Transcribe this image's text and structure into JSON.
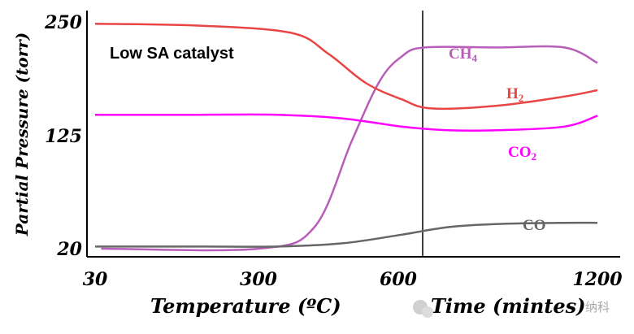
{
  "chart_data": {
    "type": "line",
    "title": "",
    "annotation": "Low SA catalyst",
    "ylabel": "Partial Pressure (torr)",
    "xlabel_left": "Temperature (ºC)",
    "xlabel_right": "Time (mintes)",
    "x_ticks": [
      "30",
      "300",
      "600",
      "1200"
    ],
    "y_ticks": [
      "250",
      "125",
      "20"
    ],
    "ylim": [
      20,
      250
    ],
    "divider_at_tick": "600",
    "grid": false,
    "series": [
      {
        "name": "CH4",
        "color": "#b85db8",
        "points": [
          [
            40,
            20
          ],
          [
            300,
            20
          ],
          [
            420,
            40
          ],
          [
            500,
            120
          ],
          [
            560,
            185
          ],
          [
            610,
            212
          ],
          [
            680,
            222
          ],
          [
            900,
            222
          ],
          [
            1100,
            222
          ],
          [
            1200,
            205
          ]
        ]
      },
      {
        "name": "H2",
        "color": "#e84545",
        "points": [
          [
            30,
            248
          ],
          [
            200,
            246
          ],
          [
            370,
            238
          ],
          [
            450,
            215
          ],
          [
            530,
            183
          ],
          [
            610,
            165
          ],
          [
            700,
            155
          ],
          [
            900,
            158
          ],
          [
            1100,
            168
          ],
          [
            1200,
            175
          ]
        ]
      },
      {
        "name": "CO2",
        "color": "#ff00ff",
        "points": [
          [
            30,
            148
          ],
          [
            200,
            148
          ],
          [
            340,
            148
          ],
          [
            480,
            144
          ],
          [
            610,
            135
          ],
          [
            750,
            131
          ],
          [
            900,
            131
          ],
          [
            1100,
            135
          ],
          [
            1200,
            147
          ]
        ]
      },
      {
        "name": "CO",
        "color": "#666666",
        "points": [
          [
            30,
            22
          ],
          [
            200,
            22
          ],
          [
            340,
            22
          ],
          [
            480,
            25
          ],
          [
            610,
            33
          ],
          [
            750,
            40
          ],
          [
            900,
            43
          ],
          [
            1100,
            44
          ],
          [
            1200,
            44
          ]
        ]
      }
    ],
    "series_labels": {
      "CH4": "CH",
      "CH4_sub": "4",
      "H2": "H",
      "H2_sub": "2",
      "CO2": "CO",
      "CO2_sub": "2",
      "CO": "CO"
    }
  },
  "watermark": "Time (mintes) 纳科"
}
